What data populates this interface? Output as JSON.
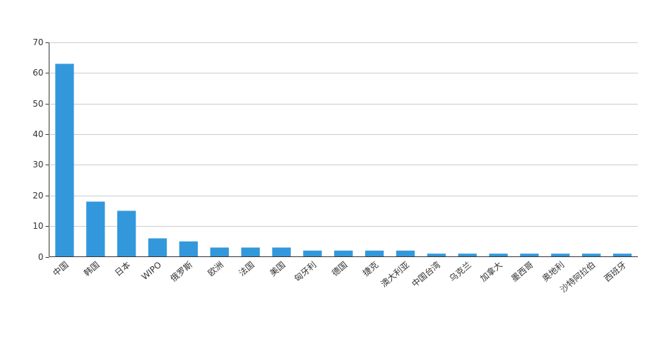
{
  "chart_data": {
    "type": "bar",
    "categories": [
      "中国",
      "韩国",
      "日本",
      "WIPO",
      "俄罗斯",
      "欧洲",
      "法国",
      "美国",
      "匈牙利",
      "德国",
      "捷克",
      "澳大利亚",
      "中国台湾",
      "乌克兰",
      "加拿大",
      "墨西哥",
      "奥地利",
      "沙特阿拉伯",
      "西班牙"
    ],
    "values": [
      63,
      18,
      15,
      6,
      5,
      3,
      3,
      3,
      2,
      2,
      2,
      2,
      1,
      1,
      1,
      1,
      1,
      1,
      1
    ],
    "color": "#3398db",
    "ylim": [
      0,
      70
    ],
    "yticks": [
      0,
      10,
      20,
      30,
      40,
      50,
      60,
      70
    ],
    "grid": true
  }
}
